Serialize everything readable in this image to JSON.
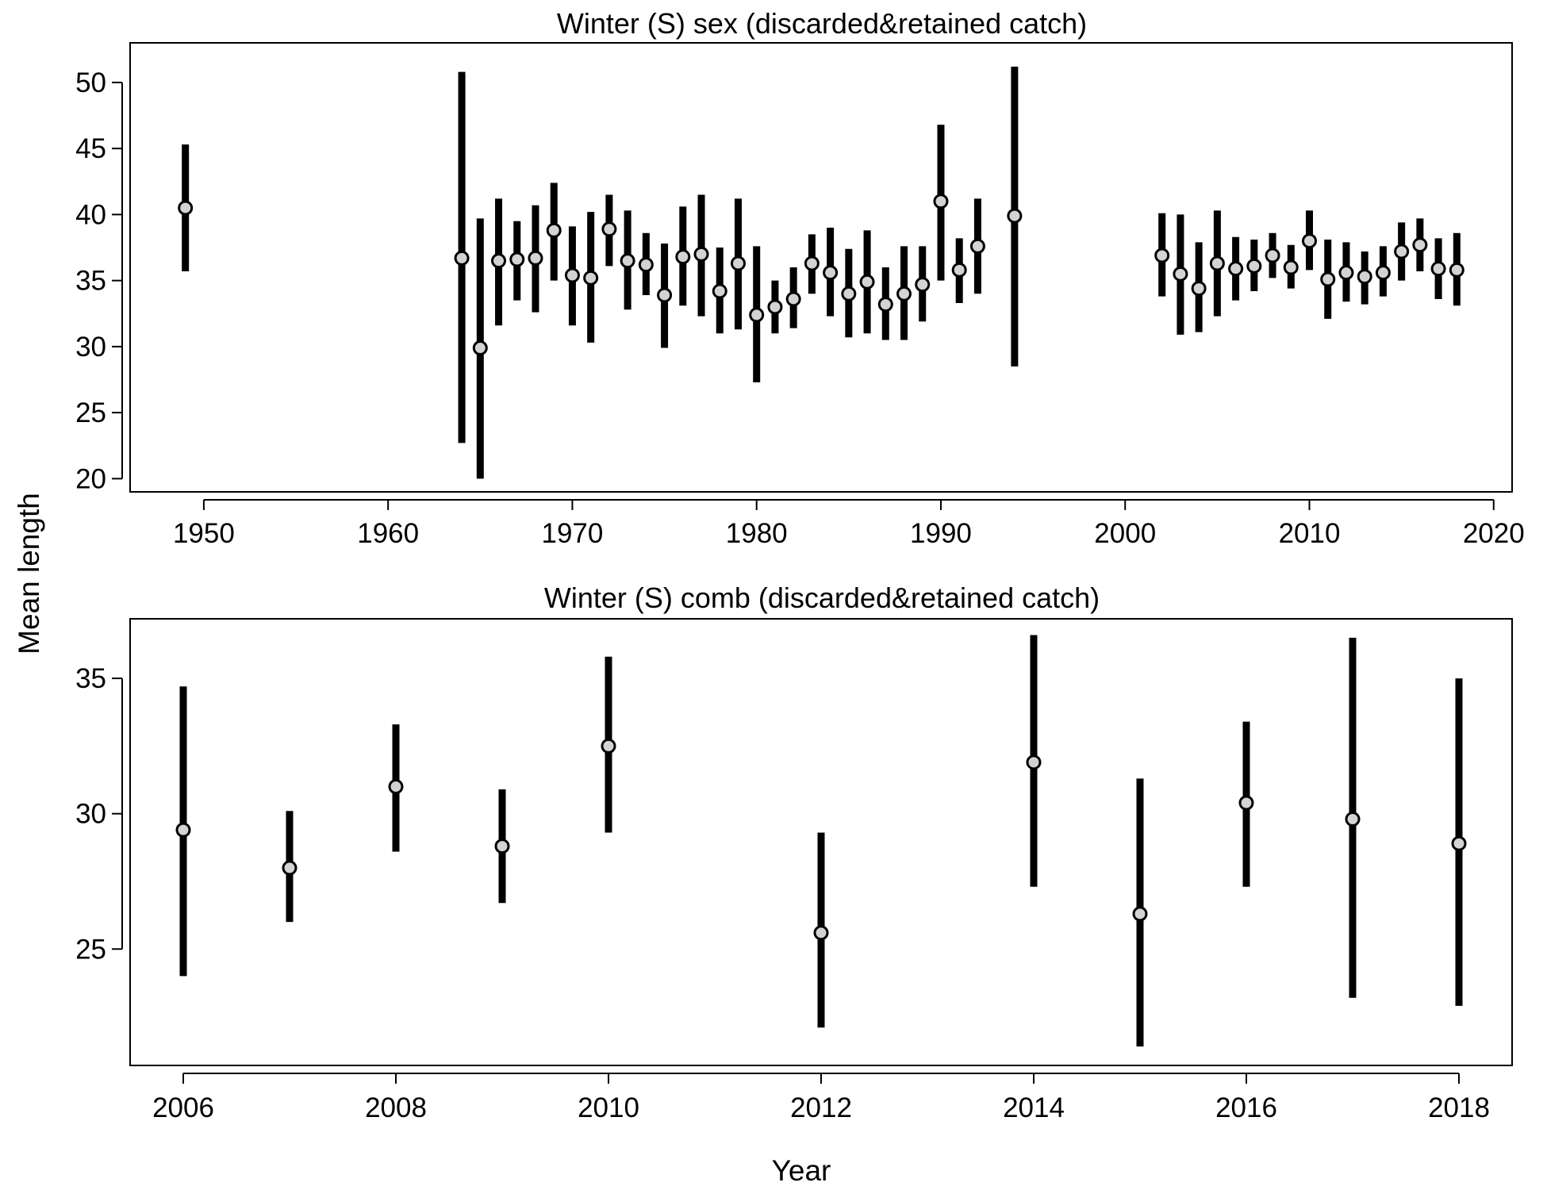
{
  "figure": {
    "ylabel": "Mean length",
    "xlabel": "Year"
  },
  "chart_data": [
    {
      "type": "scatter",
      "title": "Winter (S) sex (discarded&retained catch)",
      "xlabel": "",
      "ylabel": "Mean length",
      "xlim": [
        1946,
        2021
      ],
      "ylim": [
        19,
        53
      ],
      "x_ticks": [
        1950,
        1960,
        1970,
        1980,
        1990,
        2000,
        2010,
        2020
      ],
      "y_ticks": [
        20,
        25,
        30,
        35,
        40,
        45,
        50
      ],
      "grid": false,
      "x": [
        1949,
        1964,
        1965,
        1966,
        1967,
        1968,
        1969,
        1970,
        1971,
        1972,
        1973,
        1974,
        1975,
        1976,
        1977,
        1978,
        1979,
        1980,
        1981,
        1982,
        1983,
        1984,
        1985,
        1986,
        1987,
        1988,
        1989,
        1990,
        1991,
        1992,
        1994,
        2002,
        2003,
        2004,
        2005,
        2006,
        2007,
        2008,
        2009,
        2010,
        2011,
        2012,
        2013,
        2014,
        2015,
        2016,
        2017,
        2018
      ],
      "y": [
        40.5,
        36.7,
        29.9,
        36.5,
        36.6,
        36.7,
        38.8,
        35.4,
        35.2,
        38.9,
        36.5,
        36.2,
        33.9,
        36.8,
        37.0,
        34.2,
        36.3,
        32.4,
        33.0,
        33.6,
        36.3,
        35.6,
        34.0,
        34.9,
        33.2,
        34.0,
        34.7,
        41.0,
        35.8,
        37.6,
        39.9,
        36.9,
        35.5,
        34.4,
        36.3,
        35.9,
        36.1,
        36.9,
        36.0,
        38.0,
        35.1,
        35.6,
        35.3,
        35.6,
        37.2,
        37.7,
        35.9,
        35.8
      ],
      "lower": [
        35.7,
        22.7,
        20.0,
        31.6,
        33.5,
        32.6,
        35.0,
        31.6,
        30.3,
        36.1,
        32.8,
        33.9,
        29.9,
        33.1,
        32.3,
        31.0,
        31.3,
        27.3,
        31.0,
        31.4,
        34.0,
        32.3,
        30.7,
        31.0,
        30.5,
        30.5,
        31.9,
        35.0,
        33.3,
        34.0,
        28.5,
        33.8,
        30.9,
        31.1,
        32.3,
        33.5,
        34.2,
        35.2,
        34.4,
        35.8,
        32.1,
        33.4,
        33.2,
        33.8,
        35.0,
        35.7,
        33.6,
        33.1
      ],
      "upper": [
        45.3,
        50.8,
        39.7,
        41.2,
        39.5,
        40.7,
        42.4,
        39.1,
        40.2,
        41.5,
        40.3,
        38.6,
        37.8,
        40.6,
        41.5,
        37.5,
        41.2,
        37.6,
        35.0,
        36.0,
        38.5,
        39.0,
        37.4,
        38.8,
        36.0,
        37.6,
        37.6,
        46.8,
        38.2,
        41.2,
        51.2,
        40.1,
        40.0,
        37.9,
        40.3,
        38.3,
        38.1,
        38.6,
        37.7,
        40.3,
        38.1,
        37.9,
        37.2,
        37.6,
        39.4,
        39.7,
        38.2,
        38.6
      ]
    },
    {
      "type": "scatter",
      "title": "Winter (S) comb (discarded&retained catch)",
      "xlabel": "Year",
      "ylabel": "Mean length",
      "xlim": [
        2005.5,
        2018.5
      ],
      "ylim": [
        20.7,
        37.2
      ],
      "x_ticks": [
        2006,
        2008,
        2010,
        2012,
        2014,
        2016,
        2018
      ],
      "y_ticks": [
        25,
        30,
        35
      ],
      "grid": false,
      "x": [
        2006,
        2007,
        2008,
        2009,
        2010,
        2012,
        2014,
        2015,
        2016,
        2017,
        2018
      ],
      "y": [
        29.4,
        28.0,
        31.0,
        28.8,
        32.5,
        25.6,
        31.9,
        26.3,
        30.4,
        29.8,
        28.9
      ],
      "lower": [
        24.0,
        26.0,
        28.6,
        26.7,
        29.3,
        22.1,
        27.3,
        21.4,
        27.3,
        23.2,
        22.9
      ],
      "upper": [
        34.7,
        30.1,
        33.3,
        30.9,
        35.8,
        29.3,
        36.6,
        31.3,
        33.4,
        36.5,
        35.0
      ]
    }
  ]
}
